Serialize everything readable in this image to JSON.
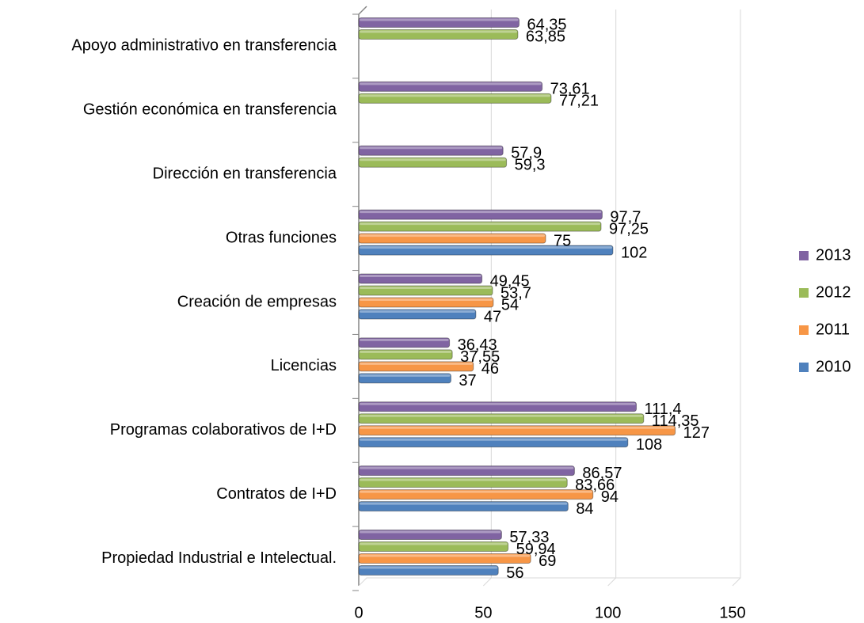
{
  "chart_data": {
    "type": "bar",
    "orientation": "horizontal",
    "categories": [
      "Apoyo administrativo en transferencia",
      "Gestión económica en transferencia",
      "Dirección en transferencia",
      "Otras funciones",
      "Creación de empresas",
      "Licencias",
      "Programas colaborativos de I+D",
      "Contratos de I+D",
      "Propiedad Industrial e Intelectual."
    ],
    "series": [
      {
        "name": "2010",
        "color": "#4f81bd",
        "values": [
          null,
          null,
          null,
          102,
          47,
          37,
          108,
          84,
          56
        ],
        "value_labels": [
          null,
          null,
          null,
          "102",
          "47",
          "37",
          "108",
          "84",
          "56"
        ]
      },
      {
        "name": "2011",
        "color": "#f79646",
        "values": [
          null,
          null,
          null,
          75,
          54,
          46,
          127,
          94,
          69
        ],
        "value_labels": [
          null,
          null,
          null,
          "75",
          "54",
          "46",
          "127",
          "94",
          "69"
        ]
      },
      {
        "name": "2012",
        "color": "#9bbb59",
        "values": [
          63.85,
          77.21,
          59.3,
          97.25,
          53.7,
          37.55,
          114.35,
          83.66,
          59.94
        ],
        "value_labels": [
          "63,85",
          "77,21",
          "59,3",
          "97,25",
          "53,7",
          "37,55",
          "114,35",
          "83,66",
          "59,94"
        ]
      },
      {
        "name": "2013",
        "color": "#8064a2",
        "values": [
          64.35,
          73.61,
          57.9,
          97.7,
          49.45,
          36.43,
          111.4,
          86.57,
          57.33
        ],
        "value_labels": [
          "64,35",
          "73,61",
          "57,9",
          "97,7",
          "49,45",
          "36,43",
          "111,4",
          "86,57",
          "57,33"
        ]
      }
    ],
    "xlim": [
      0,
      150
    ],
    "xticks": [
      0,
      50,
      100,
      150
    ],
    "grid": true,
    "legend": "right"
  }
}
